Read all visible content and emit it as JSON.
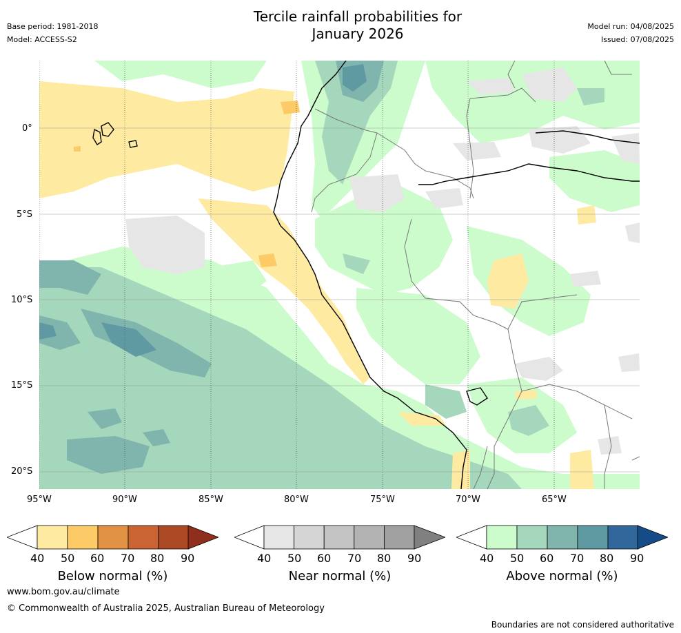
{
  "header": {
    "title_line1": "Tercile rainfall probabilities for",
    "title_line2": "January 2026",
    "base_period": "Base period: 1981-2018",
    "model": "Model: ACCESS-S2",
    "model_run": "Model run: 04/08/2025",
    "issued": "Issued: 07/08/2025"
  },
  "map": {
    "lat_labels": [
      "0°",
      "5°S",
      "10°S",
      "15°S",
      "20°S"
    ],
    "lon_labels": [
      "95°W",
      "90°W",
      "85°W",
      "80°W",
      "75°W",
      "70°W",
      "65°W"
    ],
    "colors": {
      "ocean_background": "#ffffff",
      "above_40": "#ccfccc",
      "above_50": "#a4d7bb",
      "above_60": "#7fb5ad",
      "above_70": "#5f9aa3",
      "near_40": "#e6e6e6",
      "below_40": "#feeba1",
      "below_50": "#fcca66",
      "coastline": "#000000",
      "borders": "#777777"
    }
  },
  "colorbars": [
    {
      "title": "Below normal (%)",
      "ticks": [
        "40",
        "50",
        "60",
        "70",
        "80",
        "90"
      ],
      "colors": [
        "#feeba1",
        "#fcca66",
        "#e19144",
        "#cb6433",
        "#ad4a26",
        "#8f2e1c"
      ]
    },
    {
      "title": "Near normal (%)",
      "ticks": [
        "40",
        "50",
        "60",
        "70",
        "80",
        "90"
      ],
      "colors": [
        "#e6e6e6",
        "#d5d5d5",
        "#c4c4c4",
        "#b3b3b3",
        "#a0a0a0",
        "#808080"
      ]
    },
    {
      "title": "Above normal (%)",
      "ticks": [
        "40",
        "50",
        "60",
        "70",
        "80",
        "90"
      ],
      "colors": [
        "#ccfccc",
        "#a4d7bb",
        "#7fb5ad",
        "#5f9aa3",
        "#31679a",
        "#154b86"
      ]
    }
  ],
  "footer": {
    "website": "www.bom.gov.au/climate",
    "copyright": "© Commonwealth of Australia 2025, Australian Bureau of Meteorology",
    "disclaimer": "Boundaries are not considered authoritative"
  }
}
